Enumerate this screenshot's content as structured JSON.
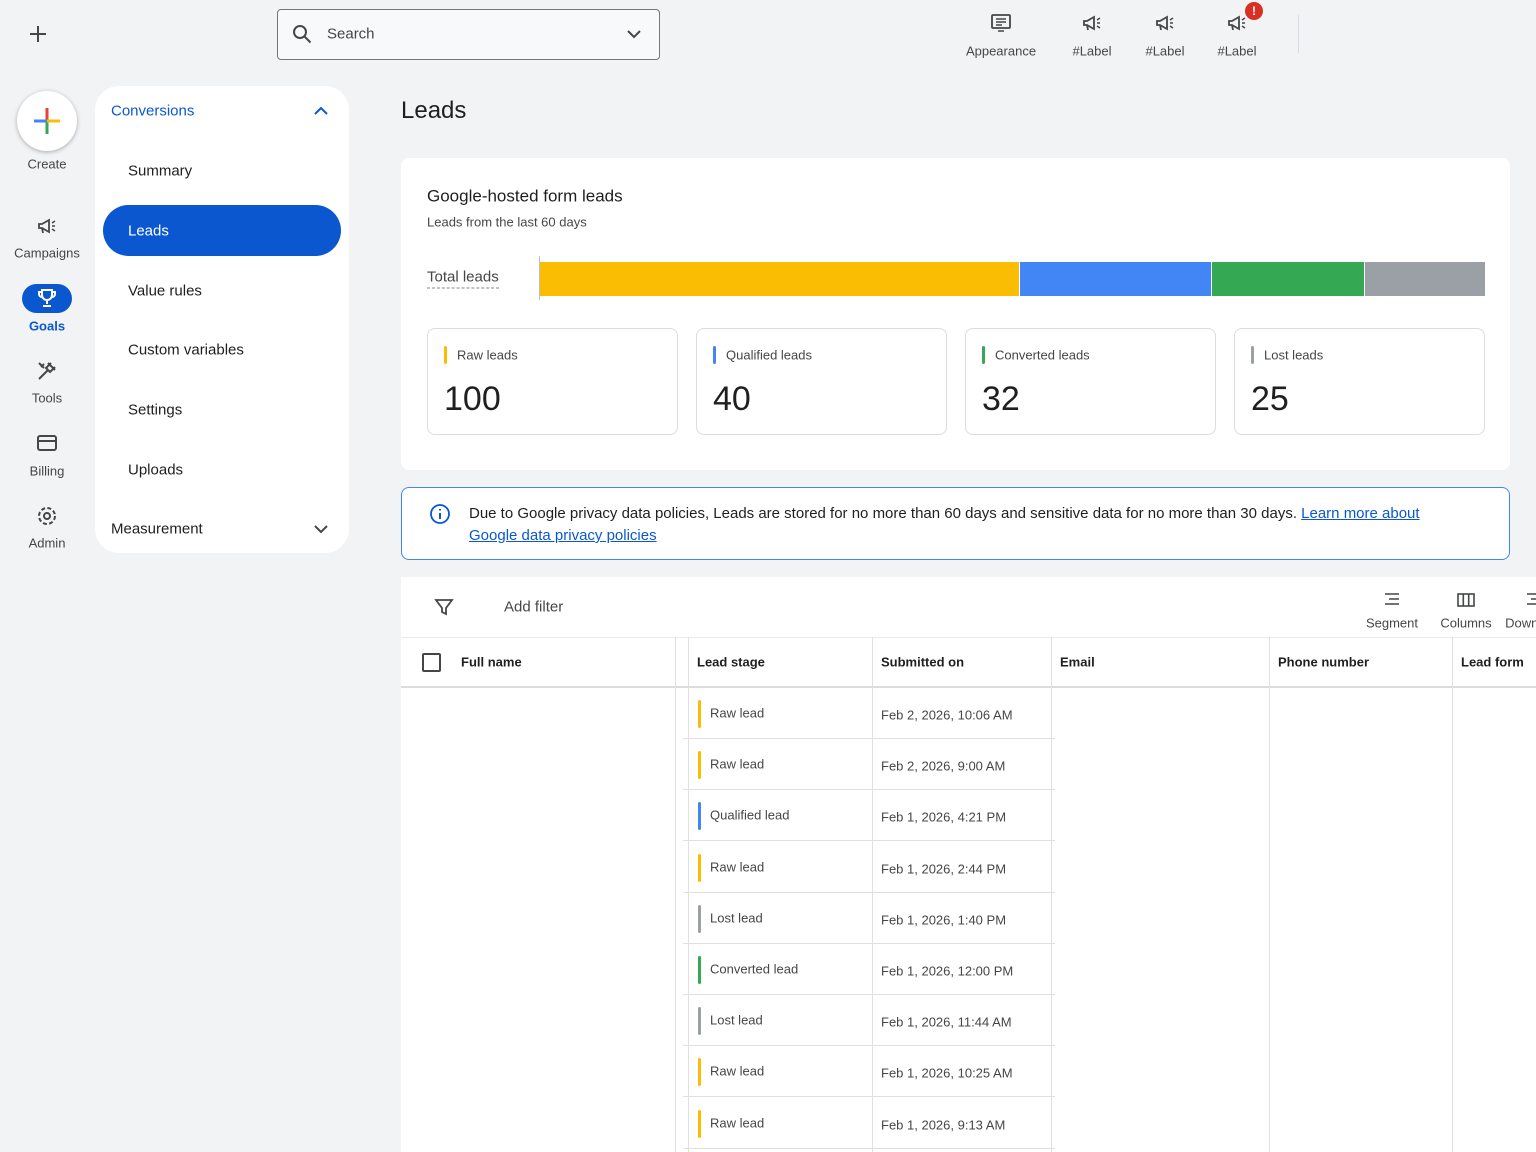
{
  "topbar": {
    "search": "Search",
    "actions": [
      "Appearance",
      "#Label",
      "#Label",
      "#Label"
    ],
    "badge": "!"
  },
  "nav": {
    "create": "Create",
    "items": [
      "Campaigns",
      "Goals",
      "Tools",
      "Billing",
      "Admin"
    ]
  },
  "sidebar": {
    "section": "Conversions",
    "items": [
      "Summary",
      "Leads",
      "Value rules",
      "Custom variables",
      "Settings",
      "Uploads"
    ],
    "footer": "Measurement"
  },
  "page_title": "Leads",
  "summary": {
    "title": "Google-hosted form leads",
    "subtitle": "Leads from the last 60 days",
    "bar_label": "Total leads",
    "cards": [
      {
        "label": "Raw leads",
        "value": 100,
        "color": "#fbbc04"
      },
      {
        "label": "Qualified leads",
        "value": 40,
        "color": "#4285f4"
      },
      {
        "label": "Converted leads",
        "value": 32,
        "color": "#34a853"
      },
      {
        "label": "Lost leads",
        "value": 25,
        "color": "#9aa0a6"
      }
    ]
  },
  "notice": {
    "text": "Due to Google privacy data policies, Leads are stored for no more than 60 days and sensitive data for no more than 30 days.",
    "link": "Learn more about Google data privacy policies"
  },
  "table": {
    "filter": "Add filter",
    "actions": [
      "Segment",
      "Columns",
      "Download"
    ],
    "columns": [
      "Full name",
      "Lead stage",
      "Submitted on",
      "Email",
      "Phone number",
      "Lead form"
    ],
    "rows": [
      {
        "stage": "Raw lead",
        "color": "#fbbc04",
        "submitted": "Feb 2, 2026, 10:06 AM"
      },
      {
        "stage": "Raw lead",
        "color": "#fbbc04",
        "submitted": "Feb 2, 2026, 9:00 AM"
      },
      {
        "stage": "Qualified lead",
        "color": "#4285f4",
        "submitted": "Feb 1, 2026, 4:21 PM"
      },
      {
        "stage": "Raw lead",
        "color": "#fbbc04",
        "submitted": "Feb 1, 2026, 2:44 PM"
      },
      {
        "stage": "Lost lead",
        "color": "#9aa0a6",
        "submitted": "Feb 1, 2026, 1:40 PM"
      },
      {
        "stage": "Converted lead",
        "color": "#34a853",
        "submitted": "Feb 1, 2026, 12:00 PM"
      },
      {
        "stage": "Lost lead",
        "color": "#9aa0a6",
        "submitted": "Feb 1, 2026, 11:44 AM"
      },
      {
        "stage": "Raw lead",
        "color": "#fbbc04",
        "submitted": "Feb 1, 2026, 10:25 AM"
      },
      {
        "stage": "Raw lead",
        "color": "#fbbc04",
        "submitted": "Feb 1, 2026, 9:13 AM"
      }
    ]
  }
}
